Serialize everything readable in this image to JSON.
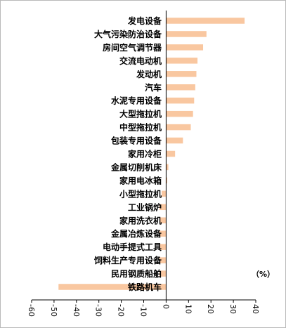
{
  "chart_data": {
    "type": "bar",
    "orientation": "horizontal",
    "unit_label": "（%）",
    "categories": [
      "发电设备",
      "大气污染防治设备",
      "房间空气调节器",
      "交流电动机",
      "发动机",
      "汽车",
      "水泥专用设备",
      "大型拖拉机",
      "中型拖拉机",
      "包装专用设备",
      "家用冷柜",
      "金属切削机床",
      "家用电冰箱",
      "小型拖拉机",
      "工业锅炉",
      "家用洗衣机",
      "金属冶炼设备",
      "电动手提式工具",
      "饲料生产专用设备",
      "民用钢质船舶",
      "铁路机车"
    ],
    "values": [
      35,
      18,
      16.5,
      14,
      13.5,
      13,
      12.5,
      12,
      11,
      7.5,
      4,
      1,
      0.5,
      -2,
      -3,
      -3,
      -3,
      -3,
      -3,
      -3,
      -48
    ],
    "xlim": [
      -60,
      40
    ],
    "xticks": [
      "-60",
      "-50",
      "-40",
      "-30",
      "-20",
      "-10",
      "0",
      "10",
      "20",
      "30",
      "40"
    ],
    "bar_color": "#f9c7a0",
    "grid": false
  }
}
